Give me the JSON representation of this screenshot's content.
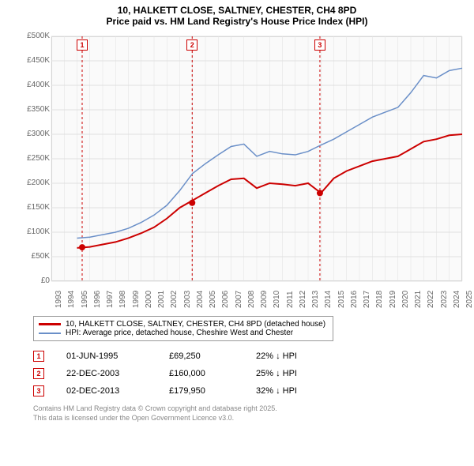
{
  "title": {
    "line1": "10, HALKETT CLOSE, SALTNEY, CHESTER, CH4 8PD",
    "line2": "Price paid vs. HM Land Registry's House Price Index (HPI)"
  },
  "chart": {
    "type": "line",
    "background_color": "#fafafa",
    "border_color": "#d0d0d0",
    "grid_color": "#e0e0e0",
    "x": {
      "min": 1993,
      "max": 2025,
      "tick_step": 1,
      "fontsize": 10,
      "label_color": "#666666"
    },
    "y": {
      "min": 0,
      "max": 500000,
      "tick_step": 50000,
      "fontsize": 10,
      "label_color": "#666666",
      "tick_labels": [
        "£0",
        "£50K",
        "£100K",
        "£150K",
        "£200K",
        "£250K",
        "£300K",
        "£350K",
        "£400K",
        "£450K",
        "£500K"
      ]
    },
    "series": [
      {
        "name": "property",
        "label": "10, HALKETT CLOSE, SALTNEY, CHESTER, CH4 8PD (detached house)",
        "color": "#cc0000",
        "line_width": 2,
        "points": [
          [
            1995,
            68000
          ],
          [
            1996,
            70000
          ],
          [
            1997,
            75000
          ],
          [
            1998,
            80000
          ],
          [
            1999,
            88000
          ],
          [
            2000,
            98000
          ],
          [
            2001,
            110000
          ],
          [
            2002,
            128000
          ],
          [
            2003,
            150000
          ],
          [
            2004,
            165000
          ],
          [
            2005,
            180000
          ],
          [
            2006,
            195000
          ],
          [
            2007,
            208000
          ],
          [
            2008,
            210000
          ],
          [
            2009,
            190000
          ],
          [
            2010,
            200000
          ],
          [
            2011,
            198000
          ],
          [
            2012,
            195000
          ],
          [
            2013,
            200000
          ],
          [
            2014,
            180000
          ],
          [
            2015,
            210000
          ],
          [
            2016,
            225000
          ],
          [
            2017,
            235000
          ],
          [
            2018,
            245000
          ],
          [
            2019,
            250000
          ],
          [
            2020,
            255000
          ],
          [
            2021,
            270000
          ],
          [
            2022,
            285000
          ],
          [
            2023,
            290000
          ],
          [
            2024,
            298000
          ],
          [
            2025,
            300000
          ]
        ],
        "markers": [
          {
            "num": "1",
            "x": 1995.4,
            "y": 69250
          },
          {
            "num": "2",
            "x": 2003.97,
            "y": 160000
          },
          {
            "num": "3",
            "x": 2013.92,
            "y": 179950
          }
        ]
      },
      {
        "name": "hpi",
        "label": "HPI: Average price, detached house, Cheshire West and Chester",
        "color": "#6a8fc8",
        "line_width": 1.5,
        "points": [
          [
            1995,
            88000
          ],
          [
            1996,
            90000
          ],
          [
            1997,
            95000
          ],
          [
            1998,
            100000
          ],
          [
            1999,
            108000
          ],
          [
            2000,
            120000
          ],
          [
            2001,
            135000
          ],
          [
            2002,
            155000
          ],
          [
            2003,
            185000
          ],
          [
            2004,
            220000
          ],
          [
            2005,
            240000
          ],
          [
            2006,
            258000
          ],
          [
            2007,
            275000
          ],
          [
            2008,
            280000
          ],
          [
            2009,
            255000
          ],
          [
            2010,
            265000
          ],
          [
            2011,
            260000
          ],
          [
            2012,
            258000
          ],
          [
            2013,
            265000
          ],
          [
            2014,
            278000
          ],
          [
            2015,
            290000
          ],
          [
            2016,
            305000
          ],
          [
            2017,
            320000
          ],
          [
            2018,
            335000
          ],
          [
            2019,
            345000
          ],
          [
            2020,
            355000
          ],
          [
            2021,
            385000
          ],
          [
            2022,
            420000
          ],
          [
            2023,
            415000
          ],
          [
            2024,
            430000
          ],
          [
            2025,
            435000
          ]
        ]
      }
    ],
    "marker_box": {
      "border_color": "#cc0000",
      "text_color": "#cc0000",
      "dash_color": "#cc0000"
    }
  },
  "legend": {
    "row1": "10, HALKETT CLOSE, SALTNEY, CHESTER, CH4 8PD (detached house)",
    "row2": "HPI: Average price, detached house, Cheshire West and Chester"
  },
  "sales": [
    {
      "num": "1",
      "date": "01-JUN-1995",
      "price": "£69,250",
      "pct": "22% ↓ HPI"
    },
    {
      "num": "2",
      "date": "22-DEC-2003",
      "price": "£160,000",
      "pct": "25% ↓ HPI"
    },
    {
      "num": "3",
      "date": "02-DEC-2013",
      "price": "£179,950",
      "pct": "32% ↓ HPI"
    }
  ],
  "footer": {
    "line1": "Contains HM Land Registry data © Crown copyright and database right 2025.",
    "line2": "This data is licensed under the Open Government Licence v3.0."
  }
}
